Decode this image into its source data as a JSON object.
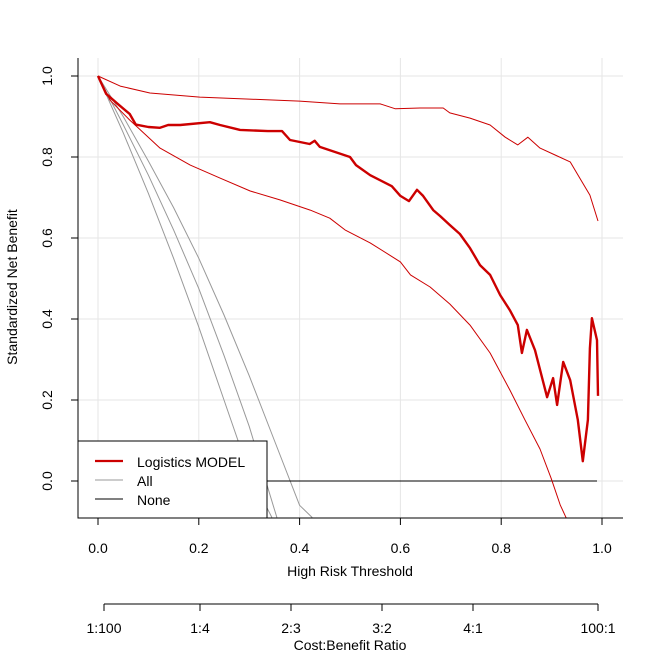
{
  "chart_data": {
    "type": "line",
    "title": "",
    "xlabel": "High Risk Threshold",
    "ylabel": "Standardized Net Benefit",
    "xlim": [
      0,
      1
    ],
    "ylim": [
      -0.09,
      1.0
    ],
    "x_ticks": [
      "0.0",
      "0.2",
      "0.4",
      "0.6",
      "0.8",
      "1.0"
    ],
    "y_ticks": [
      "0.0",
      "0.2",
      "0.4",
      "0.6",
      "0.8",
      "1.0"
    ],
    "grid": true,
    "secondary_axis": {
      "label": "Cost:Benefit Ratio",
      "ticks": [
        "1:100",
        "1:4",
        "2:3",
        "3:2",
        "4:1",
        "100:1"
      ]
    },
    "legend": {
      "position": "bottom-left",
      "entries": [
        {
          "label": "Logistics MODEL",
          "color": "#cc0000"
        },
        {
          "label": "All",
          "color": "#999999"
        },
        {
          "label": "None",
          "color": "#000000"
        }
      ]
    },
    "series": [
      {
        "name": "Logistics MODEL",
        "color": "#cc0000",
        "x": [
          0,
          0.016,
          0.04,
          0.063,
          0.075,
          0.1,
          0.123,
          0.139,
          0.163,
          0.222,
          0.242,
          0.282,
          0.337,
          0.365,
          0.381,
          0.42,
          0.43,
          0.44,
          0.5,
          0.512,
          0.54,
          0.583,
          0.6,
          0.617,
          0.633,
          0.645,
          0.665,
          0.679,
          0.698,
          0.718,
          0.738,
          0.758,
          0.778,
          0.798,
          0.817,
          0.833,
          0.841,
          0.851,
          0.867,
          0.891,
          0.903,
          0.911,
          0.923,
          0.937,
          0.952,
          0.962,
          0.972,
          0.976,
          0.98,
          0.99,
          0.992
        ],
        "y": [
          1.0,
          0.956,
          0.93,
          0.906,
          0.88,
          0.874,
          0.872,
          0.879,
          0.879,
          0.886,
          0.879,
          0.867,
          0.864,
          0.864,
          0.842,
          0.832,
          0.84,
          0.825,
          0.8,
          0.78,
          0.755,
          0.728,
          0.704,
          0.691,
          0.719,
          0.704,
          0.669,
          0.654,
          0.632,
          0.61,
          0.575,
          0.533,
          0.509,
          0.459,
          0.422,
          0.385,
          0.316,
          0.373,
          0.323,
          0.207,
          0.254,
          0.188,
          0.294,
          0.249,
          0.151,
          0.049,
          0.151,
          0.328,
          0.402,
          0.348,
          0.21
        ]
      },
      {
        "name": "Logistics MODEL upper CI",
        "color": "#cc0000",
        "x": [
          0,
          0.044,
          0.103,
          0.202,
          0.3,
          0.4,
          0.48,
          0.56,
          0.59,
          0.639,
          0.685,
          0.698,
          0.738,
          0.778,
          0.808,
          0.833,
          0.853,
          0.877,
          0.907,
          0.937,
          0.956,
          0.976,
          0.992
        ],
        "y": [
          1.0,
          0.975,
          0.958,
          0.948,
          0.943,
          0.938,
          0.931,
          0.931,
          0.919,
          0.921,
          0.921,
          0.909,
          0.896,
          0.879,
          0.849,
          0.83,
          0.849,
          0.822,
          0.805,
          0.788,
          0.748,
          0.706,
          0.642
        ]
      },
      {
        "name": "Logistics MODEL lower CI",
        "color": "#cc0000",
        "x": [
          0,
          0.024,
          0.063,
          0.123,
          0.183,
          0.242,
          0.302,
          0.361,
          0.421,
          0.46,
          0.49,
          0.54,
          0.6,
          0.62,
          0.659,
          0.698,
          0.738,
          0.778,
          0.817,
          0.847,
          0.877,
          0.899,
          0.917,
          0.929
        ],
        "y": [
          1.0,
          0.94,
          0.891,
          0.822,
          0.78,
          0.748,
          0.716,
          0.694,
          0.669,
          0.649,
          0.62,
          0.588,
          0.541,
          0.509,
          0.479,
          0.437,
          0.385,
          0.316,
          0.225,
          0.151,
          0.079,
          0.007,
          -0.059,
          -0.091
        ]
      },
      {
        "name": "All",
        "color": "#999999",
        "x": [
          0,
          0.05,
          0.1,
          0.15,
          0.2,
          0.25,
          0.3,
          0.35,
          0.4,
          0.425
        ],
        "y": [
          1.0,
          0.9,
          0.79,
          0.675,
          0.55,
          0.41,
          0.26,
          0.1,
          -0.06,
          -0.09
        ]
      },
      {
        "name": "All lower CI",
        "color": "#999999",
        "x": [
          0,
          0.05,
          0.1,
          0.15,
          0.2,
          0.25,
          0.3,
          0.345
        ],
        "y": [
          1.0,
          0.86,
          0.71,
          0.55,
          0.38,
          0.2,
          0.02,
          -0.09
        ]
      },
      {
        "name": "All middle",
        "color": "#999999",
        "x": [
          0,
          0.05,
          0.1,
          0.15,
          0.2,
          0.25,
          0.3,
          0.35,
          0.355
        ],
        "y": [
          1.0,
          0.88,
          0.755,
          0.62,
          0.475,
          0.31,
          0.135,
          -0.07,
          -0.09
        ]
      },
      {
        "name": "None",
        "color": "#000000",
        "x": [
          0,
          0.99
        ],
        "y": [
          0,
          0
        ]
      }
    ]
  }
}
